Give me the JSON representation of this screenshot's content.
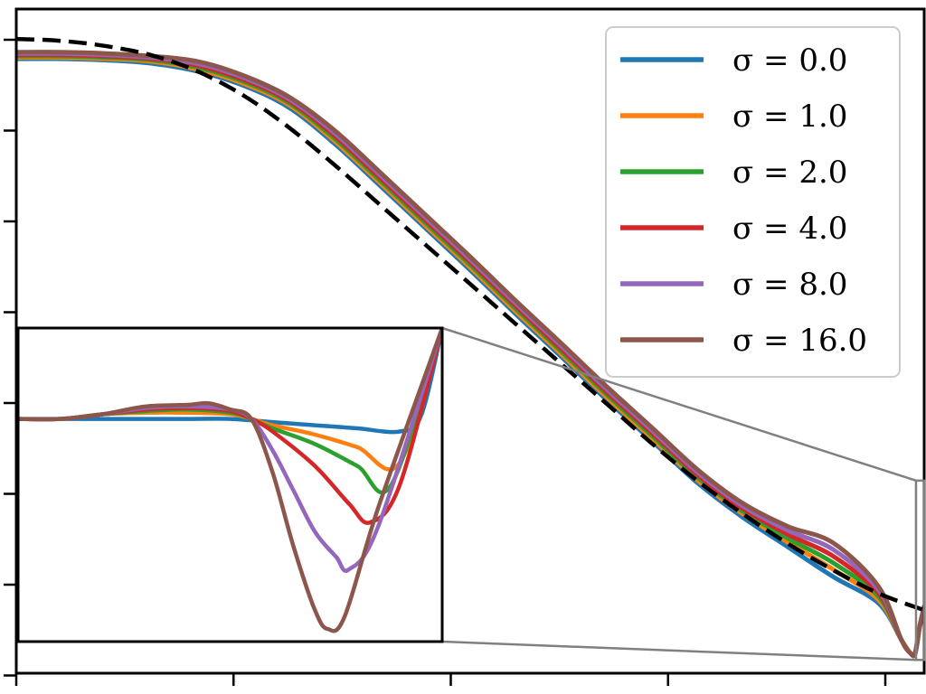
{
  "chart_data": {
    "type": "line",
    "title": "",
    "xlabel": "",
    "ylabel": "",
    "xlim": [
      0,
      1
    ],
    "ylim": [
      0,
      1
    ],
    "x_tick_labels": [
      "",
      "",
      "",
      "",
      ""
    ],
    "y_tick_labels": [
      "",
      "",
      "",
      "",
      "",
      "",
      "",
      ""
    ],
    "legend_position": "top-right",
    "legend": [
      {
        "label": "σ = 0.0",
        "color": "#1f77b4"
      },
      {
        "label": "σ = 1.0",
        "color": "#ff7f0e"
      },
      {
        "label": "σ = 2.0",
        "color": "#2ca02c"
      },
      {
        "label": "σ = 4.0",
        "color": "#d62728"
      },
      {
        "label": "σ = 8.0",
        "color": "#9467bd"
      },
      {
        "label": "σ = 16.0",
        "color": "#8c564b"
      }
    ],
    "reference": {
      "style": "dashed",
      "color": "#000000",
      "x": [
        0.0,
        0.05,
        0.1,
        0.15,
        0.2,
        0.25,
        0.3,
        0.35,
        0.4,
        0.45,
        0.5,
        0.55,
        0.6,
        0.65,
        0.7,
        0.75,
        0.8,
        0.85,
        0.9,
        0.95,
        1.0
      ],
      "y": [
        0.955,
        0.952,
        0.944,
        0.93,
        0.906,
        0.87,
        0.822,
        0.766,
        0.706,
        0.646,
        0.586,
        0.526,
        0.466,
        0.406,
        0.346,
        0.29,
        0.24,
        0.195,
        0.155,
        0.12,
        0.095
      ]
    },
    "series": [
      {
        "name": "σ = 0.0",
        "color": "#1f77b4",
        "x": [
          0.0,
          0.05,
          0.1,
          0.15,
          0.2,
          0.25,
          0.3,
          0.35,
          0.4,
          0.45,
          0.5,
          0.55,
          0.6,
          0.65,
          0.7,
          0.75,
          0.8,
          0.85,
          0.9,
          0.95,
          0.975,
          0.985,
          0.99,
          0.995,
          1.0
        ],
        "y": [
          0.925,
          0.925,
          0.923,
          0.918,
          0.906,
          0.885,
          0.852,
          0.798,
          0.735,
          0.671,
          0.607,
          0.541,
          0.477,
          0.412,
          0.35,
          0.287,
          0.235,
          0.19,
          0.145,
          0.105,
          0.05,
          0.03,
          0.03,
          0.07,
          0.1
        ]
      },
      {
        "name": "σ = 1.0",
        "color": "#ff7f0e",
        "x": [
          0.0,
          0.05,
          0.1,
          0.15,
          0.2,
          0.25,
          0.3,
          0.35,
          0.4,
          0.45,
          0.5,
          0.55,
          0.6,
          0.65,
          0.7,
          0.75,
          0.8,
          0.85,
          0.9,
          0.95,
          0.975,
          0.985,
          0.99,
          0.995,
          1.0
        ],
        "y": [
          0.927,
          0.927,
          0.925,
          0.921,
          0.909,
          0.888,
          0.856,
          0.802,
          0.739,
          0.675,
          0.611,
          0.545,
          0.481,
          0.416,
          0.354,
          0.291,
          0.24,
          0.197,
          0.156,
          0.11,
          0.05,
          0.03,
          0.03,
          0.07,
          0.1
        ]
      },
      {
        "name": "σ = 2.0",
        "color": "#2ca02c",
        "x": [
          0.0,
          0.05,
          0.1,
          0.15,
          0.2,
          0.25,
          0.3,
          0.35,
          0.4,
          0.45,
          0.5,
          0.55,
          0.6,
          0.65,
          0.7,
          0.75,
          0.8,
          0.85,
          0.9,
          0.95,
          0.975,
          0.985,
          0.99,
          0.995,
          1.0
        ],
        "y": [
          0.929,
          0.929,
          0.927,
          0.923,
          0.912,
          0.891,
          0.859,
          0.806,
          0.743,
          0.679,
          0.615,
          0.549,
          0.485,
          0.42,
          0.358,
          0.295,
          0.244,
          0.203,
          0.166,
          0.115,
          0.05,
          0.03,
          0.03,
          0.07,
          0.1
        ]
      },
      {
        "name": "σ = 4.0",
        "color": "#d62728",
        "x": [
          0.0,
          0.05,
          0.1,
          0.15,
          0.2,
          0.25,
          0.3,
          0.35,
          0.4,
          0.45,
          0.5,
          0.55,
          0.6,
          0.65,
          0.7,
          0.75,
          0.8,
          0.85,
          0.9,
          0.95,
          0.975,
          0.985,
          0.99,
          0.995,
          1.0
        ],
        "y": [
          0.931,
          0.931,
          0.929,
          0.925,
          0.915,
          0.894,
          0.862,
          0.81,
          0.747,
          0.683,
          0.619,
          0.553,
          0.489,
          0.424,
          0.362,
          0.299,
          0.248,
          0.209,
          0.176,
          0.12,
          0.05,
          0.03,
          0.03,
          0.07,
          0.1
        ]
      },
      {
        "name": "σ = 8.0",
        "color": "#9467bd",
        "x": [
          0.0,
          0.05,
          0.1,
          0.15,
          0.2,
          0.25,
          0.3,
          0.35,
          0.4,
          0.45,
          0.5,
          0.55,
          0.6,
          0.65,
          0.7,
          0.75,
          0.8,
          0.85,
          0.9,
          0.95,
          0.975,
          0.985,
          0.99,
          0.995,
          1.0
        ],
        "y": [
          0.933,
          0.933,
          0.931,
          0.927,
          0.918,
          0.897,
          0.865,
          0.814,
          0.751,
          0.687,
          0.623,
          0.557,
          0.493,
          0.428,
          0.366,
          0.303,
          0.252,
          0.215,
          0.186,
          0.125,
          0.05,
          0.03,
          0.03,
          0.07,
          0.1
        ]
      },
      {
        "name": "σ = 16.0",
        "color": "#8c564b",
        "x": [
          0.0,
          0.05,
          0.1,
          0.15,
          0.2,
          0.25,
          0.3,
          0.35,
          0.4,
          0.45,
          0.5,
          0.55,
          0.6,
          0.65,
          0.7,
          0.75,
          0.8,
          0.85,
          0.9,
          0.95,
          0.975,
          0.985,
          0.99,
          0.995,
          1.0
        ],
        "y": [
          0.935,
          0.935,
          0.933,
          0.929,
          0.921,
          0.9,
          0.868,
          0.818,
          0.755,
          0.691,
          0.627,
          0.561,
          0.497,
          0.432,
          0.37,
          0.307,
          0.256,
          0.221,
          0.196,
          0.13,
          0.05,
          0.03,
          0.03,
          0.07,
          0.1
        ]
      }
    ],
    "inset": {
      "zoom_region": {
        "x": [
          0.991,
          1.0
        ],
        "y": [
          0.02,
          0.29
        ]
      },
      "series": [
        {
          "name": "σ = 0.0",
          "color": "#1f77b4",
          "x": [
            0.0,
            0.1,
            0.2,
            0.3,
            0.4,
            0.5,
            0.6,
            0.7,
            0.8,
            0.9,
            0.95,
            1.0
          ],
          "y": [
            0.71,
            0.71,
            0.71,
            0.71,
            0.71,
            0.71,
            0.7,
            0.69,
            0.68,
            0.67,
            0.72,
            1.0
          ]
        },
        {
          "name": "σ = 1.0",
          "color": "#ff7f0e",
          "x": [
            0.0,
            0.1,
            0.2,
            0.3,
            0.4,
            0.5,
            0.55,
            0.6,
            0.7,
            0.8,
            0.9,
            1.0
          ],
          "y": [
            0.71,
            0.71,
            0.725,
            0.73,
            0.73,
            0.725,
            0.71,
            0.69,
            0.66,
            0.62,
            0.57,
            1.0
          ]
        },
        {
          "name": "σ = 2.0",
          "color": "#2ca02c",
          "x": [
            0.0,
            0.1,
            0.2,
            0.3,
            0.4,
            0.5,
            0.55,
            0.6,
            0.7,
            0.8,
            0.88,
            1.0
          ],
          "y": [
            0.71,
            0.71,
            0.725,
            0.735,
            0.74,
            0.73,
            0.71,
            0.68,
            0.63,
            0.56,
            0.5,
            1.0
          ]
        },
        {
          "name": "σ = 4.0",
          "color": "#d62728",
          "x": [
            0.0,
            0.1,
            0.2,
            0.3,
            0.4,
            0.5,
            0.55,
            0.6,
            0.7,
            0.78,
            0.83,
            0.9,
            1.0
          ],
          "y": [
            0.71,
            0.71,
            0.725,
            0.74,
            0.745,
            0.735,
            0.71,
            0.67,
            0.56,
            0.44,
            0.38,
            0.5,
            1.0
          ]
        },
        {
          "name": "σ = 8.0",
          "color": "#9467bd",
          "x": [
            0.0,
            0.1,
            0.2,
            0.3,
            0.4,
            0.5,
            0.55,
            0.6,
            0.65,
            0.7,
            0.75,
            0.78,
            0.85,
            1.0
          ],
          "y": [
            0.71,
            0.71,
            0.725,
            0.745,
            0.75,
            0.74,
            0.71,
            0.61,
            0.48,
            0.35,
            0.27,
            0.23,
            0.37,
            1.0
          ]
        },
        {
          "name": "σ = 16.0",
          "color": "#8c564b",
          "x": [
            0.0,
            0.1,
            0.2,
            0.3,
            0.4,
            0.45,
            0.5,
            0.55,
            0.6,
            0.65,
            0.7,
            0.73,
            0.77,
            0.85,
            1.0
          ],
          "y": [
            0.71,
            0.71,
            0.725,
            0.75,
            0.755,
            0.76,
            0.74,
            0.71,
            0.54,
            0.3,
            0.1,
            0.04,
            0.08,
            0.43,
            1.0
          ]
        }
      ]
    }
  }
}
